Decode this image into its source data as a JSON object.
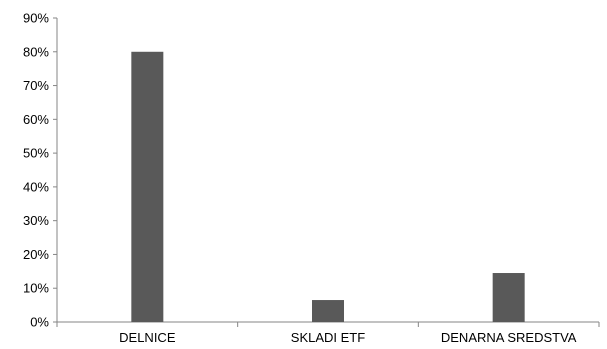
{
  "chart_data": {
    "type": "bar",
    "categories": [
      "DELNICE",
      "SKLADI ETF",
      "DENARNA SREDSTVA"
    ],
    "values": [
      80,
      6.5,
      14.5
    ],
    "ylim": [
      0,
      90
    ],
    "yticks": [
      "0%",
      "10%",
      "20%",
      "30%",
      "40%",
      "50%",
      "60%",
      "70%",
      "80%",
      "90%"
    ],
    "grid": false,
    "legend": "none",
    "bar_color": "#595959"
  }
}
